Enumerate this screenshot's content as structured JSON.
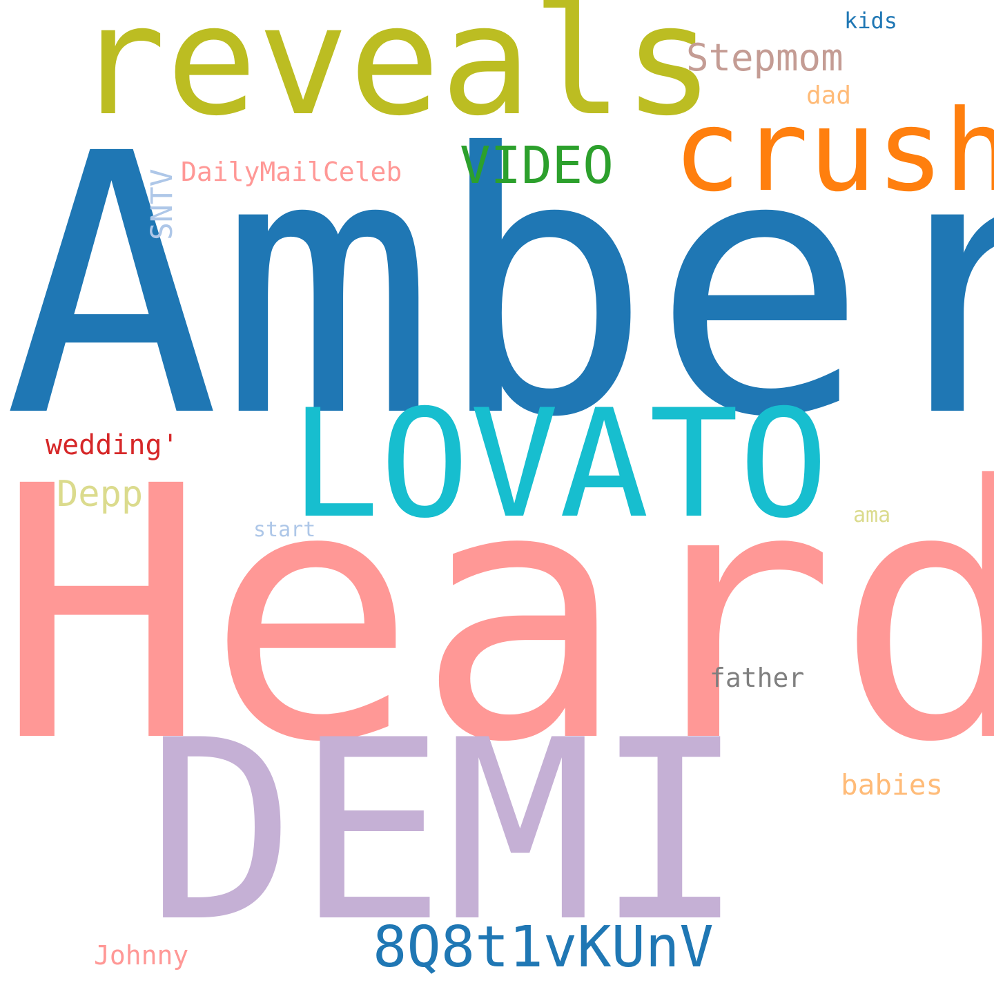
{
  "words": [
    {
      "id": "amber",
      "text": "Amber",
      "color": "#1f77b4"
    },
    {
      "id": "heard",
      "text": "Heard",
      "color": "#ff9896"
    },
    {
      "id": "demi",
      "text": "DEMI",
      "color": "#c5b0d5"
    },
    {
      "id": "reveals",
      "text": "reveals",
      "color": "#bcbd22"
    },
    {
      "id": "lovato",
      "text": "LOVATO",
      "color": "#17becf"
    },
    {
      "id": "crush",
      "text": "crush",
      "color": "#ff7f0e"
    },
    {
      "id": "8q8t1vkunv",
      "text": "8Q8t1vKUnV",
      "color": "#1f77b4"
    },
    {
      "id": "video",
      "text": "VIDEO",
      "color": "#2ca02c"
    },
    {
      "id": "stepmom",
      "text": "Stepmom",
      "color": "#c49c94"
    },
    {
      "id": "dailymailceleb",
      "text": "DailyMailCeleb",
      "color": "#ff9896"
    },
    {
      "id": "wedding",
      "text": "wedding'",
      "color": "#d62728"
    },
    {
      "id": "depp",
      "text": "Depp",
      "color": "#dbdb8d"
    },
    {
      "id": "babies",
      "text": "babies",
      "color": "#ffbb78"
    },
    {
      "id": "sntv",
      "text": "SNTV",
      "color": "#aec7e8"
    },
    {
      "id": "father",
      "text": "father",
      "color": "#7f7f7f"
    },
    {
      "id": "johnny",
      "text": "Johnny",
      "color": "#ff9896"
    },
    {
      "id": "dad",
      "text": "dad",
      "color": "#ffbb78"
    },
    {
      "id": "kids",
      "text": "kids",
      "color": "#1f77b4"
    },
    {
      "id": "start",
      "text": "start",
      "color": "#aec7e8"
    },
    {
      "id": "ama",
      "text": "ama",
      "color": "#dbdb8d"
    }
  ]
}
